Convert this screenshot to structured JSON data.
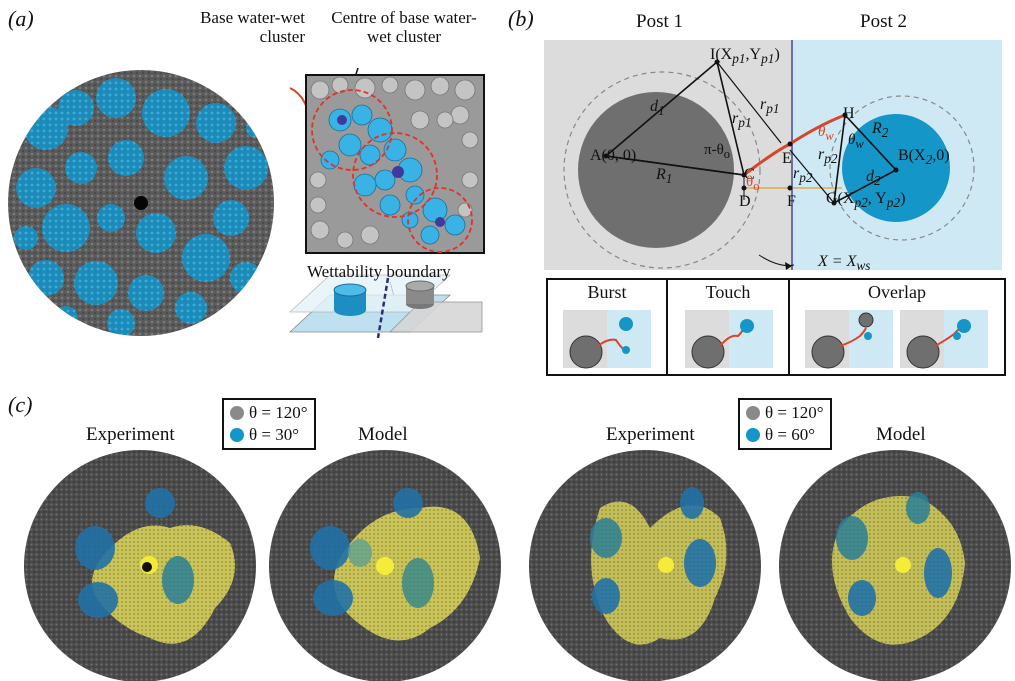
{
  "panel_a": {
    "label": "(a)",
    "base_cluster_label": "Base water-wet cluster",
    "centre_label": "Centre of base water-wet cluster",
    "wettability_label": "Wettability boundary"
  },
  "panel_b": {
    "label": "(b)",
    "post1": "Post 1",
    "post2": "Post 2",
    "points": {
      "I": "I(X",
      "I_sub1": "p1",
      "I_mid": ",Y",
      "I_sub2": "p1",
      "I_end": ")",
      "A": "A(0, 0)",
      "C": "C",
      "D": "D",
      "E": "E",
      "F": "F",
      "H": "H",
      "B": "B(X",
      "B_sub": "2",
      "B_end": ",0)",
      "G": "G(X",
      "G_sub1": "p2",
      "G_mid": ", Y",
      "G_sub2": "p2",
      "G_end": ")"
    },
    "symbols": {
      "d1": "d",
      "d1s": "1",
      "R1": "R",
      "R1s": "1",
      "rp1a": "r",
      "rp1as": "p1",
      "rp1b": "r",
      "rp1bs": "p1",
      "rp2a": "r",
      "rp2as": "p2",
      "rp2b": "r",
      "rp2bs": "p2",
      "R2": "R",
      "R2s": "2",
      "d2": "d",
      "d2s": "2",
      "pi_theta": "π-θ",
      "pi_theta_s": "o",
      "theta_o": "θ",
      "theta_os": "o",
      "theta_w_red": "θ",
      "theta_w_red_s": "w",
      "theta_w": "θ",
      "theta_ws": "w",
      "boundary": "X = X",
      "boundary_s": "ws"
    },
    "modes": [
      "Burst",
      "Touch",
      "Overlap"
    ]
  },
  "panel_c": {
    "label": "(c)",
    "left": {
      "legend": [
        {
          "text": "θ = 120°",
          "color": "#8a8a8a"
        },
        {
          "text": "θ = 30°",
          "color": "#1496c8"
        }
      ],
      "captions": [
        "Experiment",
        "Model"
      ]
    },
    "right": {
      "legend": [
        {
          "text": "θ = 120°",
          "color": "#8a8a8a"
        },
        {
          "text": "θ = 60°",
          "color": "#1496c8"
        }
      ],
      "captions": [
        "Experiment",
        "Model"
      ]
    }
  },
  "colors": {
    "blue": "#1496c8",
    "light_blue": "#cfe9f4",
    "grey_disc": "#6f6f6f",
    "grey_region": "#dcdcdc",
    "invading": "#e3dd57",
    "meniscus": "#d9442a"
  }
}
